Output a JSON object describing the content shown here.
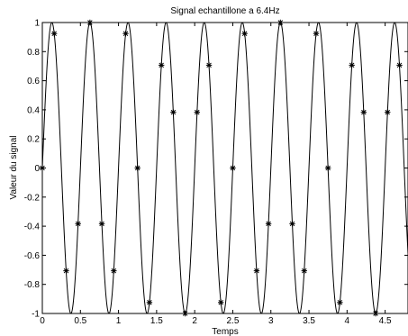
{
  "chart_data": {
    "type": "line",
    "title": "Signal echantillone a 6.4Hz",
    "xlabel": "Temps",
    "ylabel": "Valeur du signal",
    "xlim": [
      0,
      4.8
    ],
    "ylim": [
      -1,
      1
    ],
    "x_ticks": [
      0,
      0.5,
      1,
      1.5,
      2,
      2.5,
      3,
      3.5,
      4,
      4.5
    ],
    "x_tick_labels": [
      "0",
      "0.5",
      "1",
      "1.5",
      "2",
      "2.5",
      "3",
      "3.5",
      "4",
      "4.5"
    ],
    "y_ticks": [
      -1,
      -0.8,
      -0.6,
      -0.4,
      -0.2,
      0,
      0.2,
      0.4,
      0.6,
      0.8,
      1
    ],
    "y_tick_labels": [
      "-1",
      "-0.8",
      "-0.6",
      "-0.4",
      "-0.2",
      "0",
      "0.2",
      "0.4",
      "0.6",
      "0.8",
      "1"
    ],
    "grid": false,
    "series": [
      {
        "kind": "line",
        "function": "sin(2*pi*2*t)",
        "frequency_hz": 2,
        "color": "#000000"
      },
      {
        "kind": "markers",
        "marker": "*",
        "sample_rate_hz": 6.4,
        "color": "#000000",
        "x": [
          0,
          0.156,
          0.313,
          0.469,
          0.625,
          0.781,
          0.938,
          1.094,
          1.25,
          1.406,
          1.563,
          1.719,
          1.875,
          2.031,
          2.188,
          2.344,
          2.5,
          2.656,
          2.813,
          2.969,
          3.125,
          3.281,
          3.438,
          3.594,
          3.75,
          3.906,
          4.063,
          4.219,
          4.375,
          4.531,
          4.688
        ],
        "y": [
          0,
          0.924,
          -0.707,
          -0.383,
          1,
          -0.383,
          -0.707,
          0.924,
          0,
          -0.924,
          0.707,
          0.383,
          -1,
          0.383,
          0.707,
          -0.924,
          0,
          0.924,
          -0.707,
          -0.383,
          1,
          -0.383,
          -0.707,
          0.924,
          0,
          -0.924,
          0.707,
          0.383,
          -1,
          0.383,
          0.707
        ]
      }
    ]
  }
}
